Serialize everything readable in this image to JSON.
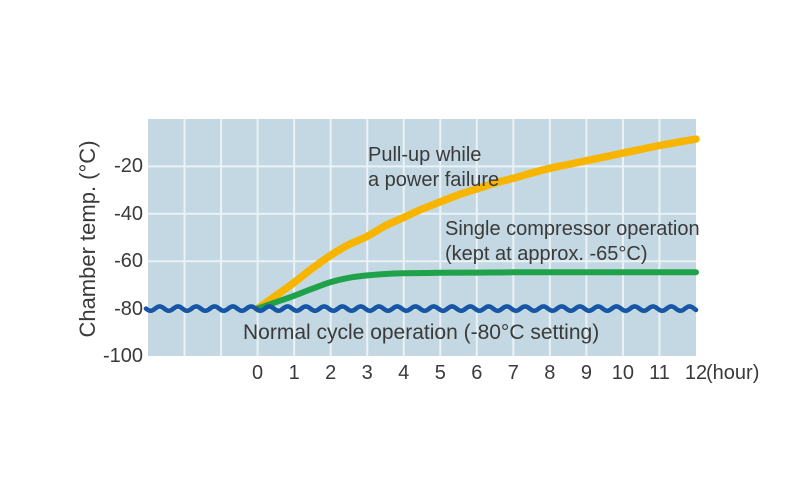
{
  "figure": {
    "y_axis_title": "Chamber temp. (°C)",
    "x_unit_label": "(hour)",
    "annotations": {
      "pullup_line1": "Pull-up while",
      "pullup_line2": "a power failure",
      "single_line1": "Single compressor operation",
      "single_line2": "(kept at approx. -65°C)",
      "normal": "Normal cycle operation (-80°C setting)"
    },
    "colors": {
      "plot_background": "#C3D8E2",
      "gridline": "#EAF2F6",
      "pullup_curve": "#F8B500",
      "single_curve": "#1FA24A",
      "normal_curve": "#1656A5",
      "text": "#3A3A3A"
    }
  },
  "chart_data": {
    "type": "line",
    "title": "",
    "xlabel": "(hour)",
    "ylabel": "Chamber temp. (°C)",
    "xlim": [
      -3,
      12
    ],
    "ylim": [
      -100,
      0
    ],
    "x_ticks": [
      0,
      1,
      2,
      3,
      4,
      5,
      6,
      7,
      8,
      9,
      10,
      11,
      12
    ],
    "y_ticks": [
      -20,
      -40,
      -60,
      -80,
      -100
    ],
    "grid": true,
    "legend_position": "none",
    "series": [
      {
        "name": "Pull-up while a power failure",
        "color": "#F8B500",
        "style": "smooth",
        "points": [
          [
            0,
            -80
          ],
          [
            0.5,
            -74.5
          ],
          [
            1,
            -69
          ],
          [
            1.5,
            -63
          ],
          [
            2,
            -57.5
          ],
          [
            2.5,
            -53
          ],
          [
            3,
            -49.5
          ],
          [
            3.5,
            -45
          ],
          [
            4,
            -41.5
          ],
          [
            4.5,
            -38
          ],
          [
            5,
            -35
          ],
          [
            5.5,
            -32
          ],
          [
            6,
            -29.5
          ],
          [
            6.5,
            -27
          ],
          [
            7,
            -25
          ],
          [
            7.5,
            -22.8
          ],
          [
            8,
            -20.8
          ],
          [
            8.5,
            -19.2
          ],
          [
            9,
            -17.6
          ],
          [
            9.5,
            -16
          ],
          [
            10,
            -14.4
          ],
          [
            10.5,
            -12.8
          ],
          [
            11,
            -11.2
          ],
          [
            11.5,
            -9.8
          ],
          [
            12,
            -8.5
          ]
        ]
      },
      {
        "name": "Single compressor operation (kept at approx. -65°C)",
        "color": "#1FA24A",
        "style": "smooth",
        "points": [
          [
            0,
            -80
          ],
          [
            0.5,
            -77.3
          ],
          [
            1,
            -74.6
          ],
          [
            1.5,
            -71.6
          ],
          [
            2,
            -68.8
          ],
          [
            2.5,
            -67
          ],
          [
            3,
            -66
          ],
          [
            3.5,
            -65.4
          ],
          [
            4,
            -65.1
          ],
          [
            5,
            -64.9
          ],
          [
            6,
            -64.8
          ],
          [
            7,
            -64.7
          ],
          [
            8,
            -64.7
          ],
          [
            9,
            -64.7
          ],
          [
            10,
            -64.7
          ],
          [
            11,
            -64.7
          ],
          [
            12,
            -64.7
          ]
        ]
      },
      {
        "name": "Normal cycle operation (-80°C setting)",
        "color": "#1656A5",
        "style": "wavy",
        "level": -80,
        "points": [
          [
            -3,
            -80
          ],
          [
            12,
            -80
          ]
        ]
      }
    ]
  }
}
